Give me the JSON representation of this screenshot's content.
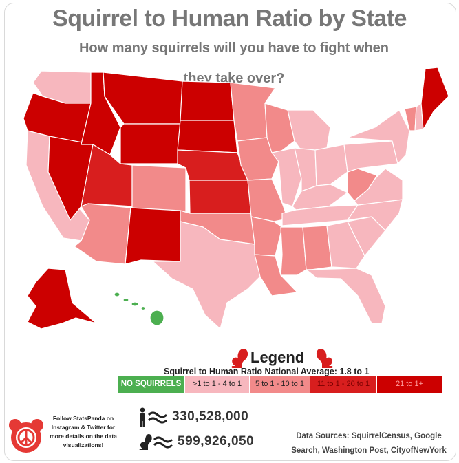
{
  "header": {
    "title": "Squirrel to Human Ratio by State",
    "subtitle": "How many squirrels will you have to fight when they take over?"
  },
  "colors": {
    "no_squirrels": "#4caf50",
    "tier_1_4": "#f7b7be",
    "tier_5_10": "#f28a8a",
    "tier_11_20": "#d81e1e",
    "tier_21_plus": "#cc0000",
    "title_gray": "#777777"
  },
  "map": {
    "states": [
      {
        "name": "WA",
        "tier": "tier_1_4"
      },
      {
        "name": "OR",
        "tier": "tier_21_plus"
      },
      {
        "name": "CA",
        "tier": "tier_1_4"
      },
      {
        "name": "NV",
        "tier": "tier_21_plus"
      },
      {
        "name": "ID",
        "tier": "tier_21_plus"
      },
      {
        "name": "MT",
        "tier": "tier_21_plus"
      },
      {
        "name": "WY",
        "tier": "tier_21_plus"
      },
      {
        "name": "UT",
        "tier": "tier_11_20"
      },
      {
        "name": "AZ",
        "tier": "tier_5_10"
      },
      {
        "name": "CO",
        "tier": "tier_5_10"
      },
      {
        "name": "NM",
        "tier": "tier_21_plus"
      },
      {
        "name": "ND",
        "tier": "tier_21_plus"
      },
      {
        "name": "SD",
        "tier": "tier_21_plus"
      },
      {
        "name": "NE",
        "tier": "tier_11_20"
      },
      {
        "name": "KS",
        "tier": "tier_11_20"
      },
      {
        "name": "OK",
        "tier": "tier_5_10"
      },
      {
        "name": "TX",
        "tier": "tier_1_4"
      },
      {
        "name": "MN",
        "tier": "tier_5_10"
      },
      {
        "name": "IA",
        "tier": "tier_5_10"
      },
      {
        "name": "MO",
        "tier": "tier_5_10"
      },
      {
        "name": "AR",
        "tier": "tier_5_10"
      },
      {
        "name": "LA",
        "tier": "tier_5_10"
      },
      {
        "name": "WI",
        "tier": "tier_5_10"
      },
      {
        "name": "IL",
        "tier": "tier_1_4"
      },
      {
        "name": "MI",
        "tier": "tier_1_4"
      },
      {
        "name": "IN",
        "tier": "tier_1_4"
      },
      {
        "name": "OH",
        "tier": "tier_1_4"
      },
      {
        "name": "KY",
        "tier": "tier_1_4"
      },
      {
        "name": "TN",
        "tier": "tier_1_4"
      },
      {
        "name": "MS",
        "tier": "tier_5_10"
      },
      {
        "name": "AL",
        "tier": "tier_5_10"
      },
      {
        "name": "GA",
        "tier": "tier_1_4"
      },
      {
        "name": "FL",
        "tier": "tier_1_4"
      },
      {
        "name": "SC",
        "tier": "tier_1_4"
      },
      {
        "name": "NC",
        "tier": "tier_1_4"
      },
      {
        "name": "VA",
        "tier": "tier_1_4"
      },
      {
        "name": "WV",
        "tier": "tier_5_10"
      },
      {
        "name": "PA",
        "tier": "tier_1_4"
      },
      {
        "name": "NY",
        "tier": "tier_1_4"
      },
      {
        "name": "VT",
        "tier": "tier_5_10"
      },
      {
        "name": "NH",
        "tier": "tier_1_4"
      },
      {
        "name": "ME",
        "tier": "tier_21_plus"
      },
      {
        "name": "AK",
        "tier": "tier_21_plus"
      },
      {
        "name": "HI",
        "tier": "no_squirrels"
      }
    ]
  },
  "legend": {
    "title": "Legend",
    "national_average": "Squirrel to Human Ratio National Average: 1.8 to 1",
    "items": [
      {
        "label": "NO SQUIRRELS",
        "tier": "no_squirrels"
      },
      {
        "label": ">1 to 1 - 4 to 1",
        "tier": "tier_1_4"
      },
      {
        "label": "5 to 1 - 10 to 1",
        "tier": "tier_5_10"
      },
      {
        "label": "11 to 1 - 20 to 1",
        "tier": "tier_11_20"
      },
      {
        "label": "21 to 1+",
        "tier": "tier_21_plus"
      }
    ]
  },
  "footer": {
    "follow_text": "Follow StatsPanda on Instagram & Twitter for more details on the data visualizations!",
    "humans": "330,528,000",
    "squirrels": "599,926,050",
    "sources": "Data Sources: SquirrelCensus, Google Search, Washington Post, CityofNewYork"
  }
}
